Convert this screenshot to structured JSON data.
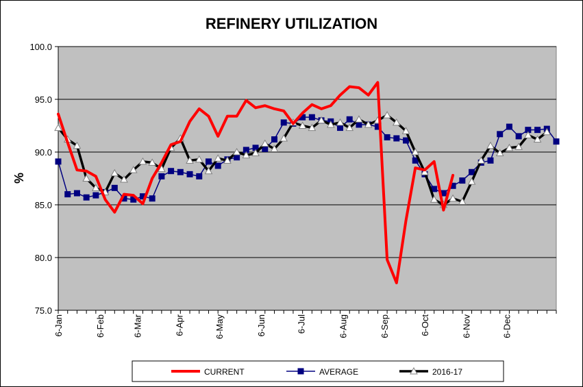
{
  "chart_data": {
    "type": "line",
    "title": "REFINERY UTILIZATION",
    "ylabel": "%",
    "xlabel": "",
    "ylim": [
      75.0,
      100.0
    ],
    "yticks": [
      "75.0",
      "80.0",
      "85.0",
      "90.0",
      "95.0",
      "100.0"
    ],
    "xticks": [
      {
        "label": "6-Jan",
        "week": 0
      },
      {
        "label": "6-Feb",
        "week": 4.43
      },
      {
        "label": "6-Mar",
        "week": 8.43
      },
      {
        "label": "6-Apr",
        "week": 12.86
      },
      {
        "label": "6-May",
        "week": 17.14
      },
      {
        "label": "6-Jun",
        "week": 21.57
      },
      {
        "label": "6-Jul",
        "week": 25.86
      },
      {
        "label": "6-Aug",
        "week": 30.29
      },
      {
        "label": "6-Sep",
        "week": 34.71
      },
      {
        "label": "6-Oct",
        "week": 39
      },
      {
        "label": "6-Nov",
        "week": 43.43
      },
      {
        "label": "6-Dec",
        "week": 47.71
      }
    ],
    "grid": true,
    "legend_position": "bottom",
    "plot_background": "#c0c0c0",
    "series": [
      {
        "name": "CURRENT",
        "color": "#ff0000",
        "marker": "none",
        "values": [
          93.6,
          90.9,
          88.3,
          88.2,
          87.7,
          85.5,
          84.3,
          86.0,
          85.9,
          85.1,
          87.5,
          89.0,
          90.7,
          91.0,
          92.9,
          94.1,
          93.4,
          91.5,
          93.4,
          93.4,
          94.9,
          94.2,
          94.4,
          94.1,
          93.9,
          92.7,
          93.7,
          94.5,
          94.1,
          94.4,
          95.4,
          96.2,
          96.1,
          95.4,
          96.6,
          79.8,
          77.6,
          83.5,
          88.5,
          88.3,
          89.1,
          84.5,
          87.8
        ]
      },
      {
        "name": "AVERAGE",
        "color": "#000080",
        "marker": "square",
        "values": [
          89.1,
          86.0,
          86.1,
          85.7,
          85.9,
          86.2,
          86.6,
          85.6,
          85.5,
          85.8,
          85.6,
          87.7,
          88.2,
          88.1,
          87.9,
          87.7,
          89.1,
          88.7,
          89.3,
          89.5,
          90.2,
          90.4,
          90.3,
          91.2,
          92.8,
          92.7,
          93.3,
          93.3,
          93.0,
          92.9,
          92.3,
          93.1,
          92.6,
          92.6,
          92.4,
          91.4,
          91.3,
          91.1,
          89.2,
          87.9,
          86.5,
          86.1,
          86.8,
          87.3,
          88.1,
          89.0,
          89.2,
          91.7,
          92.4,
          91.5,
          92.1,
          92.1,
          92.2,
          91.0
        ]
      },
      {
        "name": "2016-17",
        "color": "#000000",
        "marker": "triangle",
        "values": [
          92.3,
          91.2,
          90.6,
          87.5,
          86.6,
          86.2,
          88.0,
          87.4,
          88.3,
          89.1,
          89.0,
          88.4,
          90.4,
          91.3,
          89.2,
          89.3,
          88.2,
          89.4,
          89.2,
          90.0,
          89.7,
          89.9,
          90.8,
          90.3,
          91.3,
          92.8,
          92.5,
          92.3,
          93.0,
          92.6,
          92.8,
          92.3,
          93.1,
          92.6,
          93.0,
          93.5,
          92.8,
          92.0,
          90.0,
          88.1,
          85.5,
          85.0,
          85.6,
          85.3,
          87.2,
          89.2,
          90.6,
          89.9,
          90.4,
          90.5,
          91.6,
          91.2,
          91.9
        ]
      }
    ]
  }
}
